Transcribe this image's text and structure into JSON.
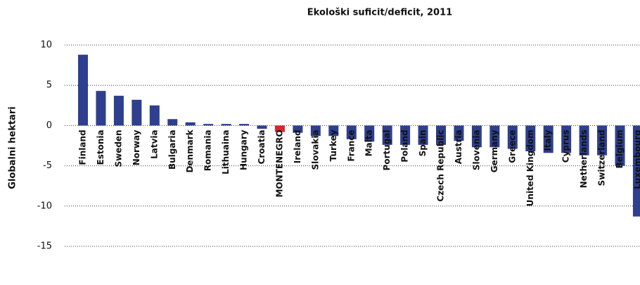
{
  "chart_data": {
    "type": "bar",
    "title": "Ekološki suficit/deficit, 2011",
    "ylabel": "Globalni hektari",
    "categories": [
      "Finland",
      "Estonia",
      "Sweden",
      "Norway",
      "Latvia",
      "Bulgaria",
      "Denmark",
      "Romania",
      "Lithuaina",
      "Hungary",
      "Croatia",
      "MONTENEGRO",
      "Ireland",
      "Slovakia",
      "Turkey",
      "France",
      "Malta",
      "Portugal",
      "Poland",
      "Spain",
      "Czech Republic",
      "Austria",
      "Slovenia",
      "Germany",
      "Greece",
      "United Kingdom",
      "Italy",
      "Cyprus",
      "Netherlands",
      "Switzerland",
      "Belgium",
      "Luxembourg"
    ],
    "values": [
      8.8,
      4.3,
      3.7,
      3.2,
      2.5,
      0.8,
      0.4,
      0.2,
      0.2,
      0.2,
      -0.4,
      -0.8,
      -0.9,
      -1.3,
      -1.3,
      -1.7,
      -2.0,
      -2.4,
      -2.4,
      -2.4,
      -2.4,
      -1.9,
      -2.7,
      -2.7,
      -2.9,
      -3.2,
      -3.4,
      -3.4,
      -3.7,
      -3.7,
      -5.0,
      -11.3
    ],
    "colors": [
      "#2e3f8f",
      "#2e3f8f",
      "#2e3f8f",
      "#2e3f8f",
      "#2e3f8f",
      "#2e3f8f",
      "#2e3f8f",
      "#2e3f8f",
      "#2e3f8f",
      "#2e3f8f",
      "#2e3f8f",
      "#d9262c",
      "#2e3f8f",
      "#2e3f8f",
      "#2e3f8f",
      "#2e3f8f",
      "#2e3f8f",
      "#2e3f8f",
      "#2e3f8f",
      "#2e3f8f",
      "#2e3f8f",
      "#2e3f8f",
      "#2e3f8f",
      "#2e3f8f",
      "#2e3f8f",
      "#2e3f8f",
      "#2e3f8f",
      "#2e3f8f",
      "#2e3f8f",
      "#2e3f8f",
      "#2e3f8f",
      "#2e3f8f"
    ],
    "ylim": [
      -15,
      10
    ],
    "yticks": [
      10,
      5,
      0,
      -5,
      -10,
      -15
    ],
    "grid": true
  }
}
